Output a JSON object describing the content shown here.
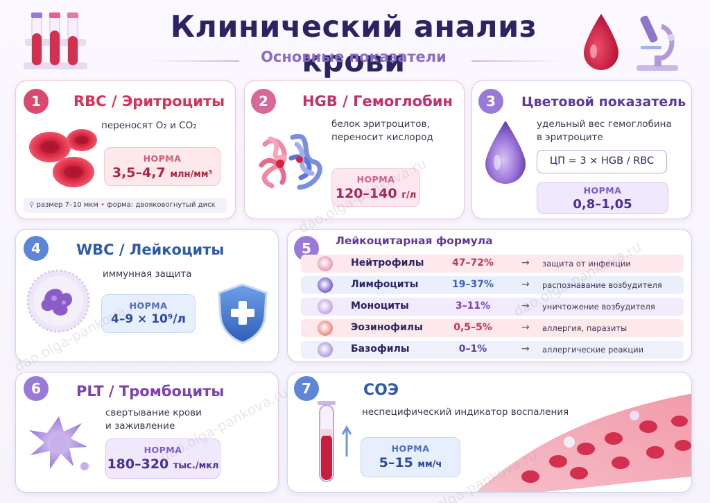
{
  "header": {
    "title": "Клинический анализ крови",
    "subtitle": "Основные показатели"
  },
  "cards": {
    "rbc": {
      "number": "1",
      "title": "RBC / Эритроциты",
      "description": "переносят O₂ и CO₂",
      "norm_label": "НОРМА",
      "norm_value": "3,5–4,7",
      "norm_unit": "млн/мм³",
      "meta_size": "размер 7–10 мкм",
      "meta_shape": "форма: двояковогнутый диск"
    },
    "hgb": {
      "number": "2",
      "title": "HGB / Гемоглобин",
      "description_1": "белок эритроцитов,",
      "description_2": "переносит кислород",
      "norm_label": "НОРМА",
      "norm_value": "120–140",
      "norm_unit": "г/л"
    },
    "cp": {
      "number": "3",
      "title": "Цветовой показатель",
      "description_1": "удельный вес гемоглобина",
      "description_2": "в эритроците",
      "formula": "ЦП = 3 × HGB / RBC",
      "norm_label": "НОРМА",
      "norm_value": "0,8–1,05"
    },
    "wbc": {
      "number": "4",
      "title": "WBC / Лейкоциты",
      "description": "иммунная защита",
      "norm_label": "НОРМА",
      "norm_value": "4–9 × 10⁹/л"
    },
    "leuko": {
      "number": "5",
      "title": "Лейкоцитарная формула",
      "arrow": "→",
      "rows": [
        {
          "name": "Нейтрофилы",
          "value": "47–72%",
          "function": "защита от инфекции",
          "bg": "#fde8ee",
          "color": "#c8325a",
          "icon": "#e39bb3"
        },
        {
          "name": "Лимфоциты",
          "value": "19–37%",
          "function": "распознавание возбудителя",
          "bg": "#eaeffc",
          "color": "#3b5fb8",
          "icon": "#7a5cc6"
        },
        {
          "name": "Моноциты",
          "value": "3–11%",
          "function": "уничтожение возбудителя",
          "bg": "#f1ebfb",
          "color": "#7a3fb8",
          "icon": "#c3a2e6"
        },
        {
          "name": "Эозинофилы",
          "value": "0,5–5%",
          "function": "аллергия, паразиты",
          "bg": "#fde9ec",
          "color": "#c8325a",
          "icon": "#e88a7e"
        },
        {
          "name": "Базофилы",
          "value": "0–1%",
          "function": "аллергические реакции",
          "bg": "#eef1fb",
          "color": "#5a3fa8",
          "icon": "#b096dc"
        }
      ]
    },
    "plt": {
      "number": "6",
      "title": "PLT / Тромбоциты",
      "description_1": "свертывание крови",
      "description_2": "и заживление",
      "norm_label": "НОРМА",
      "norm_value": "180–320",
      "norm_unit": "тыс./мкл"
    },
    "esr": {
      "number": "7",
      "title": "СОЭ",
      "description": "неспецифический индикатор воспаления",
      "norm_label": "НОРМА",
      "norm_value": "5–15",
      "norm_unit": "мм/ч"
    }
  },
  "watermark": "dao.olga-pankova.ru",
  "colors": {
    "red": "#d6335a",
    "pink": "#c42f6c",
    "violet": "#5b3a9a",
    "blue": "#2f5aa8",
    "purple": "#7f3fb5"
  }
}
